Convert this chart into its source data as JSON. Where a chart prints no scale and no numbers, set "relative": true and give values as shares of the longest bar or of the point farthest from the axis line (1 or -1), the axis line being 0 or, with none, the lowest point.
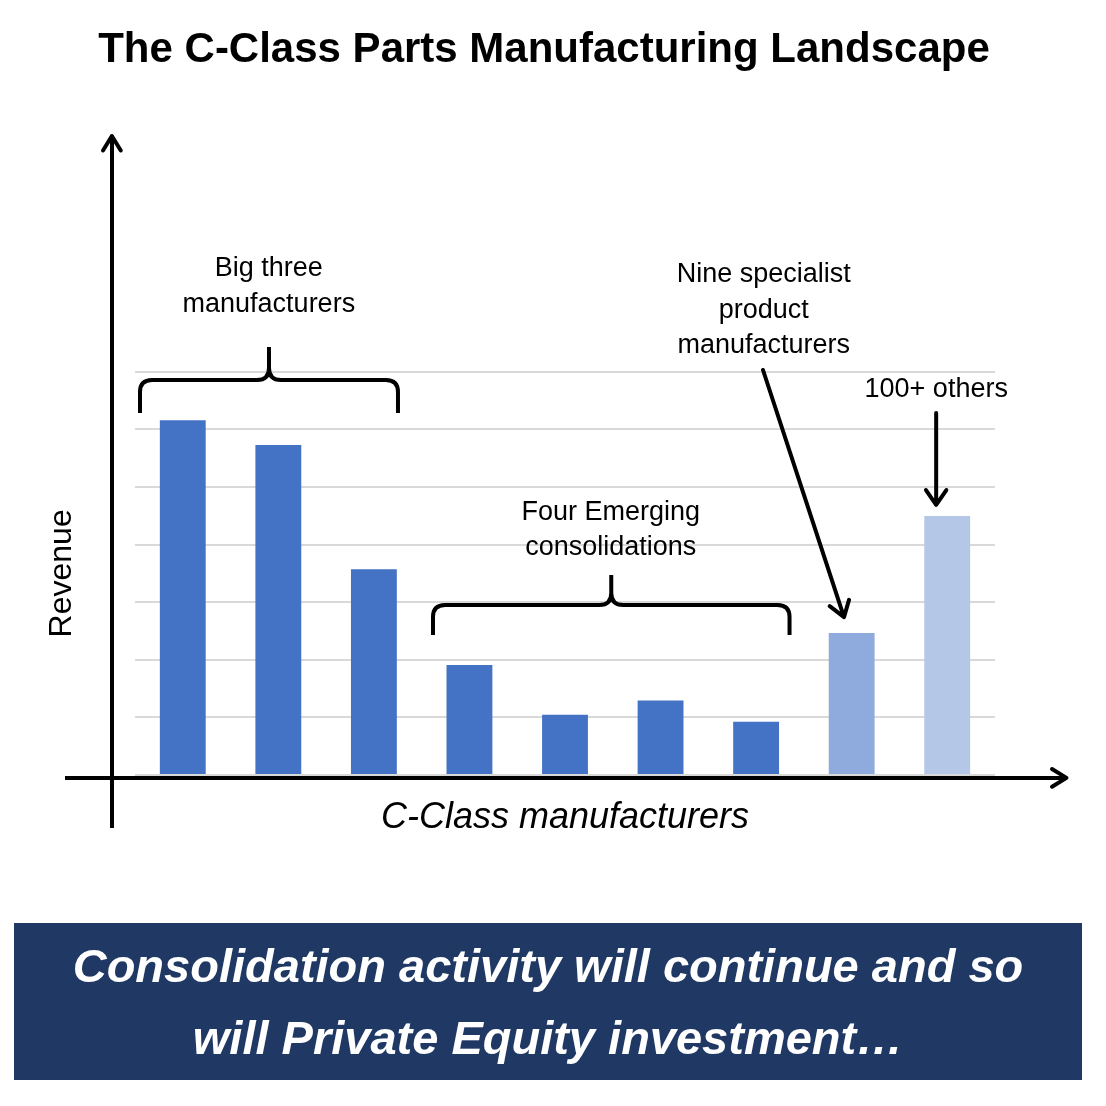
{
  "chart_data": {
    "type": "bar",
    "title": "The C-Class Parts Manufacturing Landscape",
    "xlabel": "C-Class manufacturers",
    "ylabel": "Revenue",
    "categories": [
      null,
      null,
      null,
      null,
      null,
      null,
      null,
      null,
      null
    ],
    "values": [
      1,
      0.93,
      0.58,
      0.31,
      0.17,
      0.21,
      0.15,
      0.4,
      0.73
    ],
    "colors": [
      "#4472c4",
      "#4472c4",
      "#4472c4",
      "#4472c4",
      "#4472c4",
      "#4472c4",
      "#4472c4",
      "#8faadc",
      "#b4c7e7"
    ],
    "relative": true,
    "grid": "y",
    "annotations": [
      "Big three manufacturers",
      "Four Emerging consolidations",
      "Nine specialist product manufacturers",
      "100+ others",
      "Consolidation activity will continue and so will Private Equity investment…"
    ]
  }
}
